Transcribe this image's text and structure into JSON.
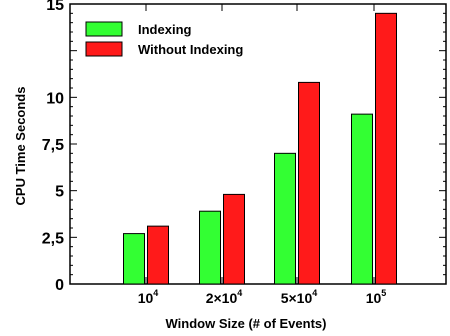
{
  "chart_data": {
    "type": "bar",
    "categories": [
      "10^4",
      "2×10^4",
      "5×10^4",
      "10^5"
    ],
    "category_labels": [
      {
        "base": "10",
        "sup": "4"
      },
      {
        "base": "2×10",
        "sup": "4"
      },
      {
        "base": "5×10",
        "sup": "4"
      },
      {
        "base": "10",
        "sup": "5"
      }
    ],
    "series": [
      {
        "name": "Indexing",
        "color": "#33ff33",
        "values": [
          2.7,
          3.9,
          7.0,
          9.1
        ]
      },
      {
        "name": "Without Indexing",
        "color": "#ff1a1a",
        "values": [
          3.1,
          4.8,
          10.8,
          14.5
        ]
      }
    ],
    "xlabel": "Window Size (# of Events)",
    "ylabel": "CPU Time  Seconds",
    "ylim": [
      0,
      15
    ],
    "yticks": [
      {
        "value": 0,
        "label": "0"
      },
      {
        "value": 2.5,
        "label": "2,5"
      },
      {
        "value": 5,
        "label": "5"
      },
      {
        "value": 7.5,
        "label": "7,5"
      },
      {
        "value": 10,
        "label": "10"
      },
      {
        "value": 15,
        "label": "15"
      }
    ],
    "legend_position": "top-left",
    "grid": false
  }
}
